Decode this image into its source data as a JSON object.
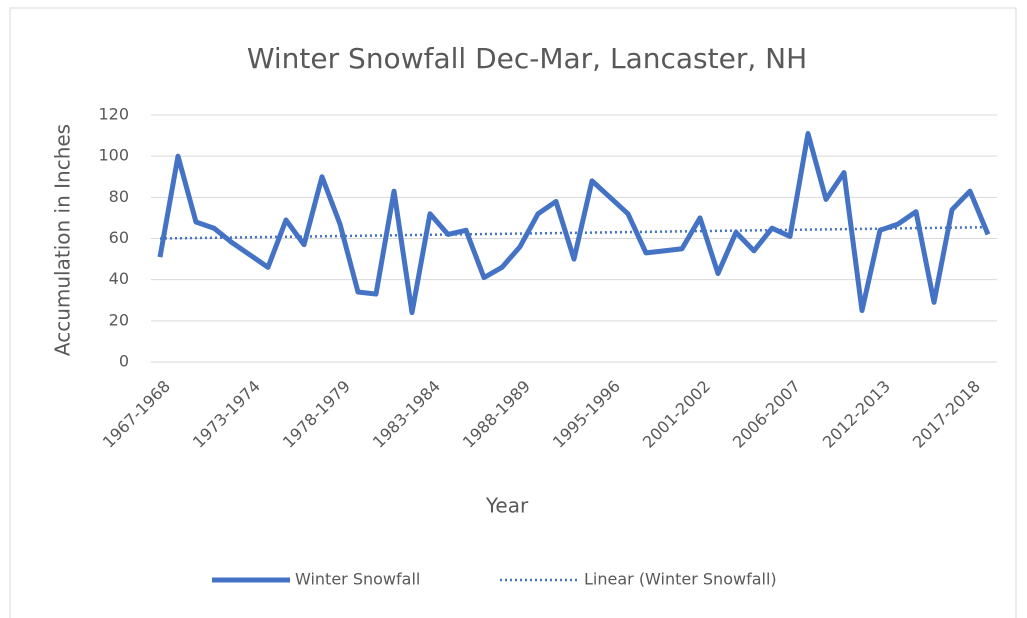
{
  "chart_data": {
    "type": "line",
    "title": "Winter Snowfall Dec-Mar, Lancaster, NH",
    "x_label": "Year",
    "y_label": "Accumulation in Inches",
    "categories": [
      "1967-1968",
      null,
      null,
      null,
      null,
      "1973-1974",
      null,
      null,
      null,
      null,
      "1978-1979",
      null,
      null,
      null,
      null,
      "1983-1984",
      null,
      null,
      null,
      null,
      "1988-1989",
      null,
      null,
      null,
      null,
      "1995-1996",
      null,
      null,
      null,
      null,
      "2001-2002",
      null,
      null,
      null,
      null,
      "2006-2007",
      null,
      null,
      null,
      null,
      "2012-2013",
      null,
      null,
      null,
      null,
      "2017-2018",
      null
    ],
    "series": [
      {
        "name": "Winter Snowfall",
        "color": "#4472c4",
        "values": [
          51,
          100,
          68,
          65,
          58,
          52,
          46,
          69,
          57,
          90,
          67,
          34,
          33,
          83,
          24,
          72,
          62,
          64,
          41,
          46,
          56,
          72,
          78,
          50,
          88,
          80,
          72,
          53,
          54,
          55,
          70,
          43,
          63,
          54,
          65,
          61,
          111,
          79,
          92,
          25,
          64,
          67,
          73,
          29,
          74,
          83,
          62
        ]
      }
    ],
    "trendline": {
      "name": "Linear (Winter Snowfall)",
      "color": "#4472c4",
      "values": [
        60,
        65.5
      ]
    },
    "ylim": [
      0,
      120
    ],
    "yticks": [
      0,
      20,
      40,
      60,
      80,
      100,
      120
    ],
    "grid": true,
    "legend": "bottom"
  }
}
